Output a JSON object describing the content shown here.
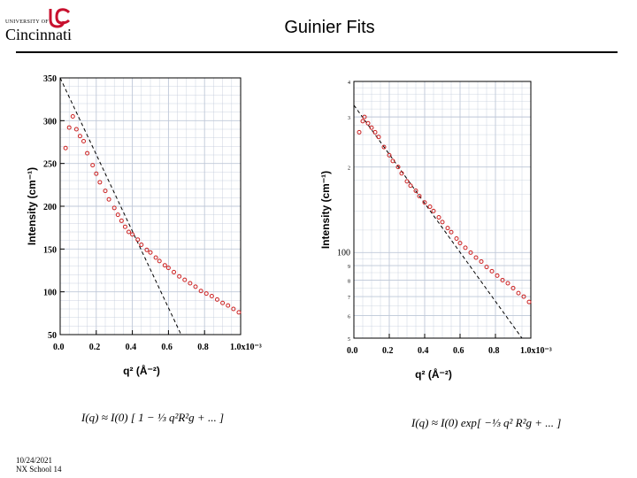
{
  "header": {
    "logo_top": "UNIVERSITY OF",
    "logo_name": "Cincinnati",
    "title": "Guinier Fits"
  },
  "footer": {
    "date": "10/24/2021",
    "event": "NX School 14"
  },
  "formulas": {
    "left": "I(q) ≈ I(0) [ 1 − ⅓ q²R²g + ... ]",
    "right": "I(q) ≈ I(0) exp[ −⅓ q² R²g + ... ]"
  },
  "colors": {
    "marker": "#cc2222",
    "fit_line": "#000000",
    "grid": "#bfc8d8",
    "logo": "#c8102e"
  },
  "chart_data": [
    {
      "type": "scatter",
      "scale": "linear",
      "ylabel": "Intensity (cm⁻¹)",
      "xlabel": "q² (Å⁻²)",
      "xlim": [
        0.0,
        0.001
      ],
      "ylim": [
        50,
        350
      ],
      "x_ticks": [
        "0.0",
        "0.2",
        "0.4",
        "0.6",
        "0.8",
        "1.0x10⁻³"
      ],
      "y_ticks": [
        "50",
        "100",
        "150",
        "200",
        "250",
        "300",
        "350"
      ],
      "grid": true,
      "series": [
        {
          "values_x": [
            3e-05,
            5e-05,
            7e-05,
            9e-05,
            0.00011,
            0.00013,
            0.00015,
            0.00018,
            0.0002,
            0.00022,
            0.00025,
            0.00027,
            0.0003,
            0.00032,
            0.00034,
            0.00036,
            0.00038,
            0.0004,
            0.00043,
            0.00045,
            0.00048,
            0.0005,
            0.00053,
            0.00055,
            0.00058,
            0.0006,
            0.00063,
            0.00066,
            0.00069,
            0.00072,
            0.00075,
            0.00078,
            0.00081,
            0.00084,
            0.00087,
            0.0009,
            0.00093,
            0.00096,
            0.00099
          ],
          "values_y": [
            268,
            292,
            305,
            290,
            282,
            276,
            262,
            248,
            238,
            228,
            218,
            208,
            198,
            190,
            183,
            176,
            170,
            167,
            161,
            155,
            149,
            146,
            140,
            136,
            131,
            128,
            123,
            118,
            114,
            110,
            106,
            101,
            98,
            95,
            91,
            87,
            84,
            80,
            76
          ]
        }
      ],
      "fit_line": {
        "x": [
          0.0,
          0.00067
        ],
        "y": [
          350,
          50
        ]
      }
    },
    {
      "type": "scatter",
      "scale": "log-y",
      "ylabel": "Intensity (cm⁻¹)",
      "xlabel": "q² (Å⁻²)",
      "xlim": [
        0.0,
        0.001
      ],
      "ylim": [
        50,
        400
      ],
      "x_ticks": [
        "0.0",
        "0.2",
        "0.4",
        "0.6",
        "0.8",
        "1.0x10⁻³"
      ],
      "y_ticks": [
        "4",
        "3",
        "2",
        "100",
        "9",
        "8",
        "7",
        "6",
        "5"
      ],
      "grid": true,
      "series": [
        {
          "values_x": [
            3e-05,
            5e-05,
            6e-05,
            8e-05,
            0.0001,
            0.00012,
            0.00014,
            0.00017,
            0.0002,
            0.00022,
            0.00025,
            0.00027,
            0.0003,
            0.00032,
            0.00035,
            0.00037,
            0.0004,
            0.00043,
            0.00045,
            0.00048,
            0.0005,
            0.00053,
            0.00055,
            0.00058,
            0.0006,
            0.00063,
            0.00066,
            0.00069,
            0.00072,
            0.00075,
            0.00078,
            0.00081,
            0.00084,
            0.00087,
            0.0009,
            0.00093,
            0.00096,
            0.00099
          ],
          "values_y": [
            265,
            290,
            300,
            285,
            275,
            265,
            255,
            235,
            220,
            210,
            200,
            190,
            178,
            172,
            165,
            158,
            150,
            145,
            140,
            133,
            128,
            122,
            118,
            112,
            108,
            104,
            100,
            96,
            93,
            89,
            86,
            83,
            80,
            78,
            75,
            72,
            70,
            67
          ]
        }
      ],
      "fit_line": {
        "x": [
          0.0,
          0.00095
        ],
        "y": [
          330,
          50
        ]
      }
    }
  ]
}
